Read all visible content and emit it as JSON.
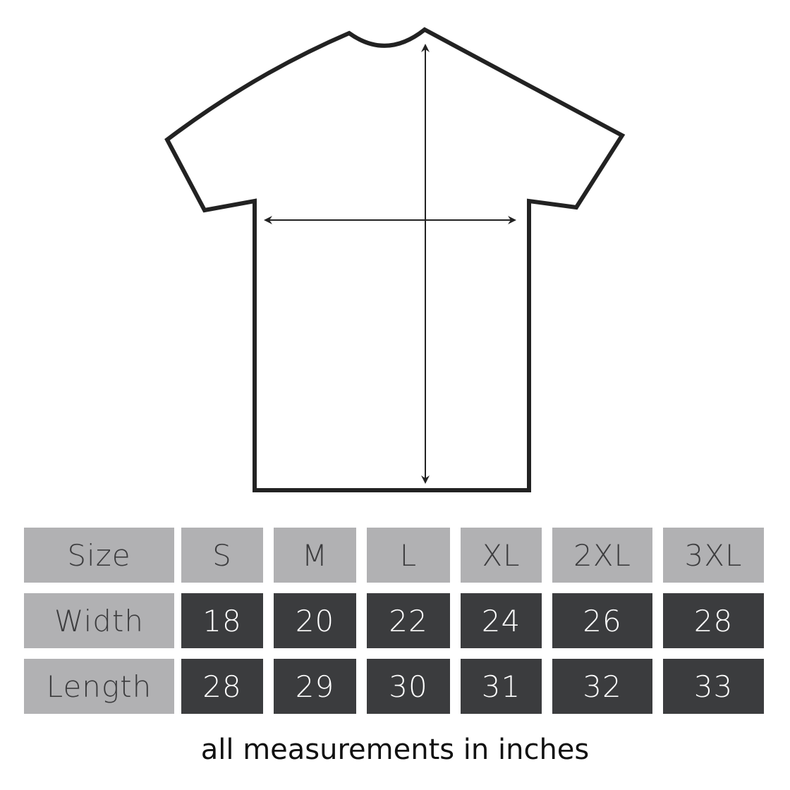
{
  "colors": {
    "header_cell": "#b1b1b3",
    "value_cell": "#3b3c3e",
    "outline": "#222222"
  },
  "table": {
    "header": {
      "label": "Size",
      "sizes": [
        "S",
        "M",
        "L",
        "XL",
        "2XL",
        "3XL"
      ]
    },
    "rows": [
      {
        "label": "Width",
        "values": [
          "18",
          "20",
          "22",
          "24",
          "26",
          "28"
        ]
      },
      {
        "label": "Length",
        "values": [
          "28",
          "29",
          "30",
          "31",
          "32",
          "33"
        ]
      }
    ]
  },
  "note": "all measurements in inches"
}
